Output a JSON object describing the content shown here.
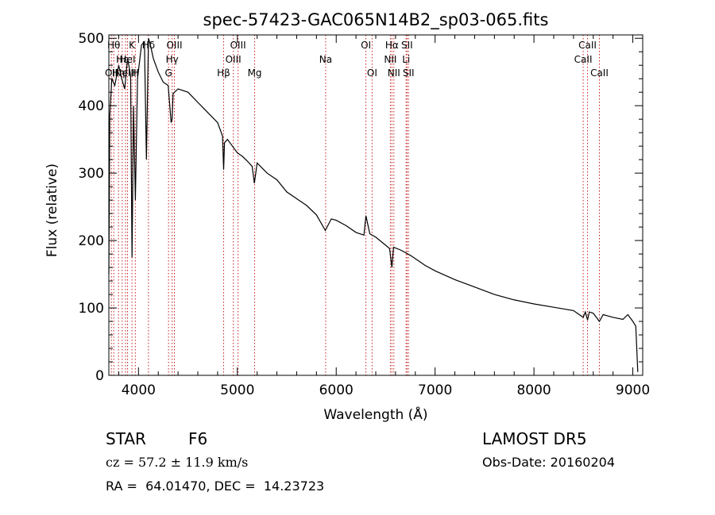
{
  "chart_data": {
    "type": "line",
    "title": "spec-57423-GAC065N14B2_sp03-065.fits",
    "xlabel": "Wavelength (Å)",
    "ylabel": "Flux (relative)",
    "xlim": [
      3700,
      9100
    ],
    "ylim": [
      0,
      505
    ],
    "xticks": [
      4000,
      5000,
      6000,
      7000,
      8000,
      9000
    ],
    "yticks": [
      0,
      100,
      200,
      300,
      400,
      500
    ],
    "x": [
      3700,
      3710,
      3730,
      3760,
      3800,
      3830,
      3860,
      3890,
      3920,
      3935,
      3950,
      3968,
      3990,
      4030,
      4060,
      4080,
      4101,
      4120,
      4150,
      4200,
      4250,
      4300,
      4330,
      4340,
      4350,
      4400,
      4500,
      4600,
      4700,
      4800,
      4850,
      4861,
      4870,
      4900,
      4950,
      5000,
      5050,
      5100,
      5150,
      5172,
      5200,
      5300,
      5400,
      5500,
      5600,
      5700,
      5800,
      5890,
      5950,
      6000,
      6100,
      6200,
      6280,
      6300,
      6340,
      6400,
      6500,
      6540,
      6563,
      6580,
      6650,
      6750,
      6900,
      7000,
      7200,
      7400,
      7600,
      7800,
      8000,
      8200,
      8400,
      8498,
      8520,
      8542,
      8560,
      8600,
      8662,
      8700,
      8800,
      8900,
      8950,
      9000,
      9030,
      9050
    ],
    "y": [
      150,
      385,
      440,
      430,
      460,
      440,
      425,
      470,
      445,
      175,
      400,
      260,
      440,
      490,
      495,
      320,
      500,
      490,
      470,
      450,
      435,
      430,
      375,
      380,
      418,
      425,
      420,
      405,
      390,
      375,
      355,
      305,
      345,
      350,
      340,
      330,
      325,
      318,
      310,
      285,
      315,
      300,
      290,
      272,
      262,
      252,
      238,
      215,
      232,
      230,
      222,
      212,
      208,
      237,
      210,
      205,
      193,
      188,
      160,
      190,
      186,
      178,
      163,
      155,
      142,
      131,
      120,
      112,
      106,
      101,
      96,
      86,
      94,
      82,
      94,
      92,
      80,
      90,
      86,
      83,
      90,
      80,
      73,
      5
    ],
    "lines": [
      {
        "x": 3726,
        "label": "OII",
        "row": 2
      },
      {
        "x": 3750,
        "label": "Hθ",
        "row": 0
      },
      {
        "x": 3798,
        "label": "Hη",
        "row": 2
      },
      {
        "x": 3835,
        "label": "Hε",
        "row": 1
      },
      {
        "x": 3869,
        "label": "NeIII",
        "row": 2
      },
      {
        "x": 3889,
        "label": "HeI",
        "row": 1
      },
      {
        "x": 3934,
        "label": "K",
        "row": 0
      },
      {
        "x": 3968,
        "label": "H",
        "row": 2
      },
      {
        "x": 4101,
        "label": "Hδ",
        "row": 0
      },
      {
        "x": 4304,
        "label": "G",
        "row": 2
      },
      {
        "x": 4340,
        "label": "Hγ",
        "row": 1
      },
      {
        "x": 4363,
        "label": "OIII",
        "row": 0
      },
      {
        "x": 4861,
        "label": "Hβ",
        "row": 2
      },
      {
        "x": 4959,
        "label": "OIII",
        "row": 1
      },
      {
        "x": 5007,
        "label": "OIII",
        "row": 0
      },
      {
        "x": 5175,
        "label": "Mg",
        "row": 2
      },
      {
        "x": 5893,
        "label": "Na",
        "row": 1
      },
      {
        "x": 6300,
        "label": "OI",
        "row": 0
      },
      {
        "x": 6363,
        "label": "OI",
        "row": 2
      },
      {
        "x": 6548,
        "label": "NII",
        "row": 1
      },
      {
        "x": 6563,
        "label": "Hα",
        "row": 0
      },
      {
        "x": 6583,
        "label": "NII",
        "row": 2
      },
      {
        "x": 6707,
        "label": "Li",
        "row": 1
      },
      {
        "x": 6716,
        "label": "SII",
        "row": 0
      },
      {
        "x": 6731,
        "label": "SII",
        "row": 2
      },
      {
        "x": 8498,
        "label": "CaII",
        "row": 1
      },
      {
        "x": 8542,
        "label": "CaII",
        "row": 0
      },
      {
        "x": 8662,
        "label": "CaII",
        "row": 2
      }
    ],
    "colors": {
      "spectrum": "#000000",
      "lines": "#c81e1e",
      "axes": "#000000"
    }
  },
  "info": {
    "object_class": "STAR",
    "subclass": "F6",
    "redshift": "cz = 57.2 ± 11.9 km/s",
    "coords": "RA =  64.01470, DEC =  14.23723",
    "survey": "LAMOST DR5",
    "obs_date": "Obs-Date: 20160204"
  }
}
